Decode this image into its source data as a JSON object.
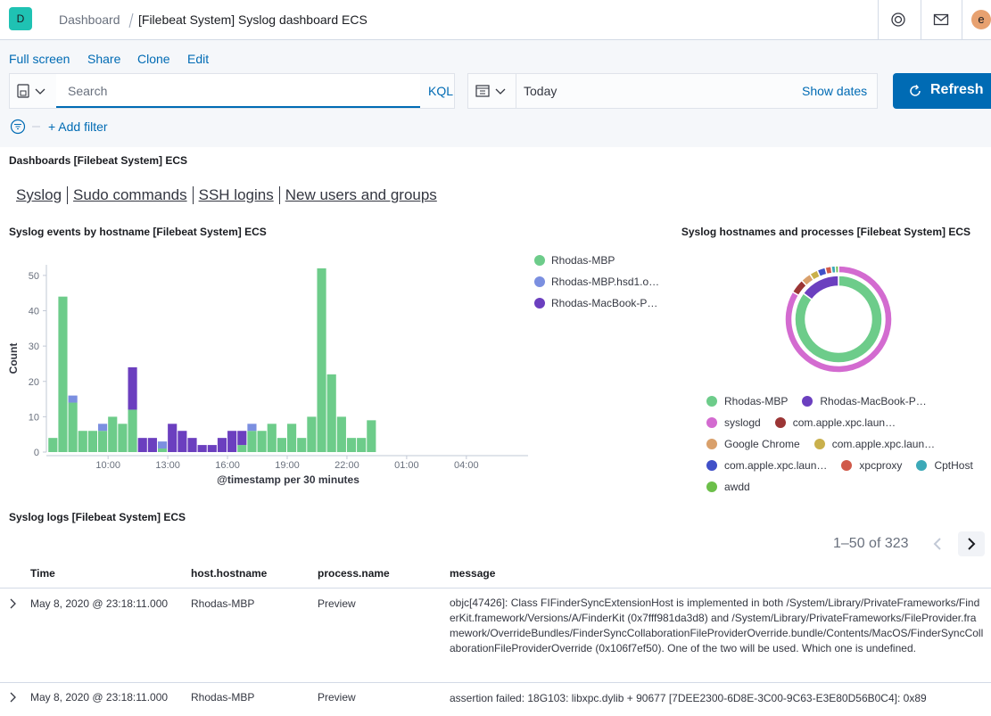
{
  "header": {
    "logo": "D",
    "breadcrumbs": [
      "Dashboard",
      "[Filebeat System] Syslog dashboard ECS"
    ],
    "avatar": "e"
  },
  "menu": [
    "Full screen",
    "Share",
    "Clone",
    "Edit"
  ],
  "query": {
    "placeholder": "Search",
    "language": "KQL",
    "date": "Today",
    "show_dates": "Show dates",
    "refresh": "Refresh"
  },
  "filters": {
    "add": "+ Add filter"
  },
  "markdown": {
    "title": "Dashboards [Filebeat System] ECS",
    "links": [
      "Syslog",
      "Sudo commands",
      "SSH logins",
      "New users and groups"
    ]
  },
  "chart_data": [
    {
      "type": "bar",
      "stacked": true,
      "title": "Syslog events by hostname [Filebeat System] ECS",
      "x_label": "@timestamp per 30 minutes",
      "y_label": "Count",
      "legend": "right",
      "x": [
        7,
        7.5,
        8,
        8.5,
        9,
        9.5,
        10,
        10.5,
        11,
        11.5,
        12,
        12.5,
        13,
        13.5,
        14,
        14.5,
        15,
        15.5,
        16,
        16.5,
        17,
        17.5,
        18,
        18.5,
        19,
        19.5,
        20,
        20.5,
        21,
        21.5,
        22,
        22.5,
        23
      ],
      "xlim": [
        6.9,
        31.1
      ],
      "xticks": [
        {
          "value": 10,
          "label": "10:00"
        },
        {
          "value": 13,
          "label": "13:00"
        },
        {
          "value": 16,
          "label": "16:00"
        },
        {
          "value": 19,
          "label": "19:00"
        },
        {
          "value": 22,
          "label": "22:00"
        },
        {
          "value": 25,
          "label": "01:00"
        },
        {
          "value": 28,
          "label": "04:00"
        }
      ],
      "ylim": [
        0,
        53
      ],
      "yticks": [
        0,
        10,
        20,
        30,
        40,
        50
      ],
      "series": [
        {
          "name": "Rhodas-MBP",
          "color": "#6dcc8a",
          "values": [
            4,
            44,
            14,
            6,
            6,
            6,
            10,
            8,
            12,
            0,
            0,
            1,
            0,
            0,
            0,
            0,
            0,
            0,
            0,
            2,
            6,
            6,
            8,
            4,
            8,
            4,
            10,
            52,
            22,
            10,
            4,
            4,
            9
          ]
        },
        {
          "name": "Rhodas-MBP.hsd1.o…",
          "color": "#7b8fe0",
          "values": [
            0,
            0,
            2,
            0,
            0,
            2,
            0,
            0,
            0,
            0,
            0,
            2,
            0,
            0,
            0,
            0,
            0,
            0,
            0,
            0,
            2,
            0,
            0,
            0,
            0,
            0,
            0,
            0,
            0,
            0,
            0,
            0,
            0
          ]
        },
        {
          "name": "Rhodas-MacBook-P…",
          "color": "#6b3fbf",
          "values": [
            0,
            0,
            0,
            0,
            0,
            0,
            0,
            0,
            12,
            4,
            4,
            0,
            8,
            6,
            4,
            2,
            2,
            4,
            6,
            4,
            0,
            0,
            0,
            0,
            0,
            0,
            0,
            0,
            0,
            0,
            0,
            0,
            0
          ]
        }
      ]
    },
    {
      "type": "pie",
      "donut": true,
      "title": "Syslog hostnames and processes [Filebeat System] ECS",
      "legend": "bottom",
      "rings": [
        {
          "labels": [
            "Rhodas-MBP",
            "Rhodas-MacBook-P…"
          ],
          "values": [
            275,
            48
          ],
          "colors": [
            "#6dcc8a",
            "#6b3fbf"
          ]
        },
        {
          "labels": [
            "syslogd",
            "com.apple.xpc.laun…",
            "Google Chrome",
            "com.apple.xpc.laun…",
            "com.apple.xpc.laun…",
            "xpcproxy",
            "CptHost",
            "awdd"
          ],
          "values": [
            270,
            14,
            10,
            8,
            8,
            6,
            4,
            3
          ],
          "colors": [
            "#d36bd0",
            "#9b3535",
            "#d9a06b",
            "#c9b04c",
            "#4050c8",
            "#d05a4a",
            "#3ca9b8",
            "#6cbf4a"
          ]
        }
      ]
    }
  ],
  "table": {
    "title": "Syslog logs [Filebeat System] ECS",
    "pagination": "1–50 of 323",
    "columns": [
      "Time",
      "host.hostname",
      "process.name",
      "message"
    ],
    "rows": [
      [
        "May 8, 2020 @ 23:18:11.000",
        "Rhodas-MBP",
        "Preview",
        "objc[47426]: Class FIFinderSyncExtensionHost is implemented in both /System/Library/PrivateFrameworks/FinderKit.framework/Versions/A/FinderKit (0x7fff981da3d8) and /System/Library/PrivateFrameworks/FileProvider.framework/OverrideBundles/FinderSyncCollaborationFileProviderOverride.bundle/Contents/MacOS/FinderSyncCollaborationFileProviderOverride (0x106f7ef50). One of the two will be used. Which one is undefined."
      ],
      [
        "May 8, 2020 @ 23:18:11.000",
        "Rhodas-MBP",
        "Preview",
        "assertion failed: 18G103: libxpc.dylib + 90677 [7DEE2300-6D8E-3C00-9C63-E3E80D56B0C4]: 0x89"
      ]
    ]
  }
}
